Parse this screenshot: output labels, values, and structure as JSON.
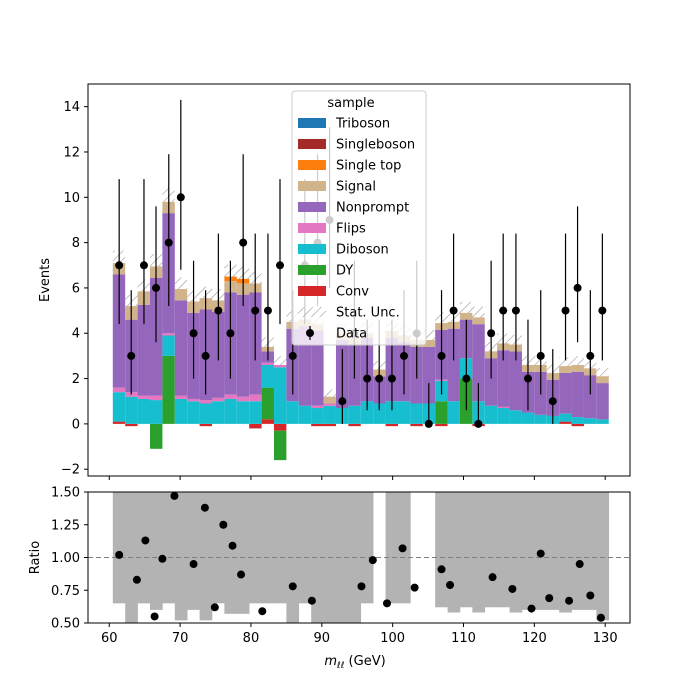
{
  "chart_data": [
    {
      "type": "bar",
      "subtype": "stacked-histogram",
      "ylabel": "Events",
      "xlim": [
        57.0,
        133.5
      ],
      "ylim": [
        -2.3,
        15.0
      ],
      "yticks": [
        -2,
        0,
        2,
        4,
        6,
        8,
        10,
        12,
        14
      ],
      "bin_edges": [
        60.5,
        62.25,
        64.0,
        65.75,
        67.5,
        69.25,
        71.0,
        72.75,
        74.5,
        76.25,
        78.0,
        79.75,
        81.5,
        83.25,
        85.0,
        86.75,
        88.5,
        90.25,
        92.0,
        93.75,
        95.5,
        97.25,
        99.0,
        100.75,
        102.5,
        104.25,
        106.0,
        107.75,
        109.5,
        111.25,
        113.0,
        114.75,
        116.5,
        118.25,
        120.0,
        121.75,
        123.5,
        125.25,
        127.0,
        128.75,
        130.5
      ],
      "legend_title": "sample",
      "legend_position": "top-center",
      "colors": {
        "Triboson": "#1f77b4",
        "Singleboson": "#a52a2a",
        "Single top": "#ff7f0e",
        "Signal": "#d2b48c",
        "Nonprompt": "#9467bd",
        "Flips": "#e377c2",
        "Diboson": "#17becf",
        "DY": "#2ca02c",
        "Conv": "#d62728"
      },
      "legend": [
        "Triboson",
        "Singleboson",
        "Single top",
        "Signal",
        "Nonprompt",
        "Flips",
        "Diboson",
        "DY",
        "Conv",
        "Stat. Unc.",
        "Data"
      ],
      "series": [
        {
          "name": "Conv",
          "values": [
            0.1,
            -0.1,
            0,
            0,
            0,
            0,
            0,
            -0.1,
            0,
            0,
            0,
            -0.2,
            0.2,
            -0.3,
            0,
            0,
            -0.1,
            -0.1,
            0,
            -0.1,
            0,
            0,
            -0.1,
            0,
            -0.1,
            0,
            -0.1,
            0,
            0,
            -0.1,
            0,
            0,
            0,
            0,
            0,
            0,
            0.1,
            -0.1,
            0,
            0
          ]
        },
        {
          "name": "DY",
          "values": [
            0,
            0,
            0,
            -1.1,
            3.0,
            0,
            0,
            0,
            0,
            0,
            0,
            0,
            1.4,
            -1.3,
            0,
            0,
            0,
            0,
            0,
            0,
            0,
            0,
            0,
            0,
            0,
            0,
            1.0,
            0,
            2.0,
            0,
            0,
            0,
            0,
            0,
            0,
            0,
            0,
            0,
            0,
            0
          ]
        },
        {
          "name": "Diboson",
          "values": [
            1.3,
            1.2,
            1.1,
            1.05,
            0.9,
            1.1,
            1.0,
            0.9,
            1.0,
            1.1,
            1.0,
            1.0,
            1.0,
            2.5,
            1.0,
            0.8,
            0.7,
            0.8,
            0.7,
            0.8,
            1.0,
            0.9,
            1.0,
            1.0,
            0.9,
            0.9,
            0.9,
            1.0,
            0.9,
            1.0,
            0.8,
            0.7,
            0.6,
            0.5,
            0.4,
            0.35,
            0.35,
            0.3,
            0.25,
            0.2
          ]
        },
        {
          "name": "Flips",
          "values": [
            0.2,
            0.2,
            0.15,
            0.2,
            0.1,
            0.15,
            0.1,
            0.15,
            0.15,
            0.2,
            0.2,
            0.3,
            0.1,
            0.1,
            0,
            0,
            0.1,
            0.1,
            0,
            0,
            0,
            0,
            0,
            0,
            0,
            0,
            0.05,
            0,
            0,
            0,
            0,
            0.05,
            0,
            0,
            0,
            0,
            0,
            0,
            0,
            0
          ]
        },
        {
          "name": "Nonprompt",
          "values": [
            5.0,
            3.2,
            4.0,
            5.2,
            5.3,
            4.2,
            3.8,
            4.0,
            3.8,
            4.5,
            4.5,
            4.5,
            0.5,
            0,
            3.2,
            3.5,
            3.3,
            0,
            3.0,
            2.7,
            2.8,
            1.2,
            2.8,
            2.6,
            2.5,
            2.5,
            2.2,
            3.2,
            1.7,
            3.4,
            2.1,
            2.5,
            2.6,
            1.8,
            1.9,
            1.6,
            1.8,
            2.0,
            1.9,
            1.6
          ]
        },
        {
          "name": "Signal",
          "values": [
            0.5,
            0.6,
            0.6,
            0.5,
            0.5,
            0.5,
            0.5,
            0.5,
            0.5,
            0.5,
            0.5,
            0.4,
            0.2,
            0,
            0.3,
            0.3,
            0.3,
            0.3,
            0.3,
            0.3,
            0.2,
            0.3,
            0.3,
            0.3,
            0.3,
            0.3,
            0.3,
            0.3,
            0.3,
            0.3,
            0.3,
            0.3,
            0.3,
            0.3,
            0.3,
            0.3,
            0.3,
            0.3,
            0.3,
            0.3
          ]
        },
        {
          "name": "Single top",
          "values": [
            0,
            0,
            0,
            0,
            0,
            0,
            0,
            0,
            0,
            0.2,
            0.2,
            0,
            0,
            0,
            0,
            0,
            0,
            0,
            0,
            0,
            0,
            0,
            0,
            0,
            0,
            0,
            0,
            0,
            0,
            0,
            0,
            0,
            0,
            0,
            0,
            0,
            0,
            0,
            0,
            0
          ]
        },
        {
          "name": "Singleboson",
          "values": [
            0,
            0,
            0,
            0,
            0,
            0,
            0,
            0,
            0,
            0,
            0,
            0,
            0,
            0,
            0,
            0,
            0,
            0,
            0,
            0,
            0,
            0,
            0,
            0,
            0,
            0,
            0,
            0,
            0,
            0,
            0,
            0,
            0,
            0,
            0,
            0,
            0,
            0,
            0,
            0
          ]
        },
        {
          "name": "Triboson",
          "values": [
            0,
            0,
            0,
            0,
            0,
            0,
            0,
            0,
            0,
            0,
            0,
            0,
            0,
            0,
            0,
            0,
            0,
            0,
            0,
            0,
            0,
            0,
            0,
            0,
            0,
            0,
            0,
            0,
            0,
            0,
            0,
            0,
            0,
            0,
            0,
            0,
            0,
            0,
            0,
            0
          ]
        }
      ],
      "data_points": {
        "name": "Data",
        "x": [
          61.4,
          63.1,
          64.9,
          66.6,
          68.4,
          70.1,
          71.9,
          73.6,
          75.4,
          77.1,
          78.9,
          80.6,
          82.4,
          84.1,
          85.9,
          87.6,
          89.4,
          91.1,
          92.9,
          94.6,
          96.4,
          98.1,
          99.9,
          101.6,
          103.4,
          105.1,
          106.9,
          108.6,
          110.4,
          112.1,
          113.9,
          115.6,
          117.4,
          119.1,
          120.9,
          122.6,
          124.4,
          126.1,
          127.9,
          129.6
        ],
        "y": [
          7,
          3,
          7,
          6,
          8,
          10,
          4,
          3,
          5,
          4,
          8,
          5,
          5,
          7,
          3,
          7,
          8,
          9,
          1,
          4,
          2,
          2,
          2,
          3,
          4,
          0,
          3,
          5,
          2,
          0,
          4,
          5,
          5,
          2,
          3,
          1,
          5,
          6,
          3,
          5
        ],
        "err_low": [
          2.6,
          1.7,
          2.6,
          2.4,
          2.8,
          3.2,
          2.0,
          1.7,
          2.2,
          2.0,
          2.8,
          2.2,
          2.2,
          2.6,
          1.7,
          2.6,
          2.8,
          3.0,
          1.0,
          2.0,
          1.4,
          1.4,
          1.4,
          1.7,
          2.0,
          0,
          1.7,
          2.2,
          1.4,
          0,
          2.0,
          2.2,
          2.2,
          1.4,
          1.7,
          1.0,
          2.2,
          2.4,
          1.7,
          2.2
        ],
        "err_high": [
          3.8,
          2.9,
          3.8,
          3.6,
          3.9,
          4.3,
          3.2,
          2.9,
          3.4,
          3.2,
          3.9,
          3.4,
          3.4,
          3.8,
          2.9,
          3.8,
          3.9,
          4.1,
          2.3,
          3.2,
          2.6,
          2.6,
          2.6,
          2.9,
          3.2,
          1.8,
          2.9,
          3.4,
          2.6,
          1.8,
          3.2,
          3.4,
          3.4,
          2.6,
          2.9,
          2.3,
          3.4,
          3.6,
          2.9,
          3.4
        ]
      },
      "stat_unc_label": "Stat. Unc."
    },
    {
      "type": "scatter",
      "xlabel": "m_ℓℓ (GeV)",
      "xlabel_main": "m",
      "xlabel_sub": "ℓℓ",
      "xlabel_unit": " (GeV)",
      "ylabel": "Ratio",
      "xlim": [
        57.0,
        133.5
      ],
      "ylim": [
        0.5,
        1.5
      ],
      "xticks": [
        60,
        70,
        80,
        90,
        100,
        110,
        120,
        130
      ],
      "yticks": [
        0.5,
        0.75,
        1.0,
        1.25,
        1.5
      ],
      "ytick_labels": [
        "0.50",
        "0.75",
        "1.00",
        "1.25",
        "1.50"
      ],
      "reference_line": 1.0,
      "unc_band_low": [
        0.65,
        0.5,
        0.65,
        0.6,
        0.65,
        0.52,
        0.6,
        0.52,
        0.65,
        0.57,
        0.57,
        0.65,
        0.65,
        0.65,
        0.5,
        0.65,
        0.5,
        0.5,
        0.5,
        0.5,
        0.65,
        null,
        0.65,
        0.65,
        null,
        null,
        0.62,
        0.58,
        0.62,
        0.58,
        0.62,
        0.62,
        0.58,
        0.6,
        0.6,
        0.6,
        0.58,
        0.6,
        0.6,
        0.52
      ],
      "unc_band_high": [
        1.5,
        1.5,
        1.5,
        1.5,
        1.5,
        1.5,
        1.5,
        1.5,
        1.5,
        1.5,
        1.5,
        1.5,
        1.5,
        1.5,
        1.5,
        1.5,
        1.5,
        1.5,
        1.5,
        1.5,
        1.5,
        null,
        1.5,
        1.5,
        null,
        null,
        1.5,
        1.5,
        1.5,
        1.5,
        1.5,
        1.5,
        1.5,
        1.5,
        1.5,
        1.5,
        1.5,
        1.5,
        1.5,
        1.5
      ],
      "points": {
        "x": [
          61.4,
          63.9,
          65.1,
          66.4,
          67.5,
          69.2,
          71.9,
          73.5,
          74.9,
          76.1,
          77.4,
          78.6,
          81.6,
          85.9,
          88.6,
          95.6,
          97.2,
          99.2,
          101.4,
          103.1,
          106.9,
          108.1,
          114.1,
          116.9,
          119.6,
          120.9,
          122.1,
          124.9,
          126.4,
          127.9,
          129.4
        ],
        "y": [
          1.02,
          0.83,
          1.13,
          0.55,
          0.99,
          1.47,
          0.95,
          1.38,
          0.62,
          1.25,
          1.09,
          0.87,
          0.59,
          0.78,
          0.67,
          0.78,
          0.98,
          0.65,
          1.07,
          0.77,
          0.91,
          0.79,
          0.85,
          0.76,
          0.61,
          1.03,
          0.69,
          0.67,
          0.95,
          0.71,
          0.54
        ]
      }
    }
  ]
}
